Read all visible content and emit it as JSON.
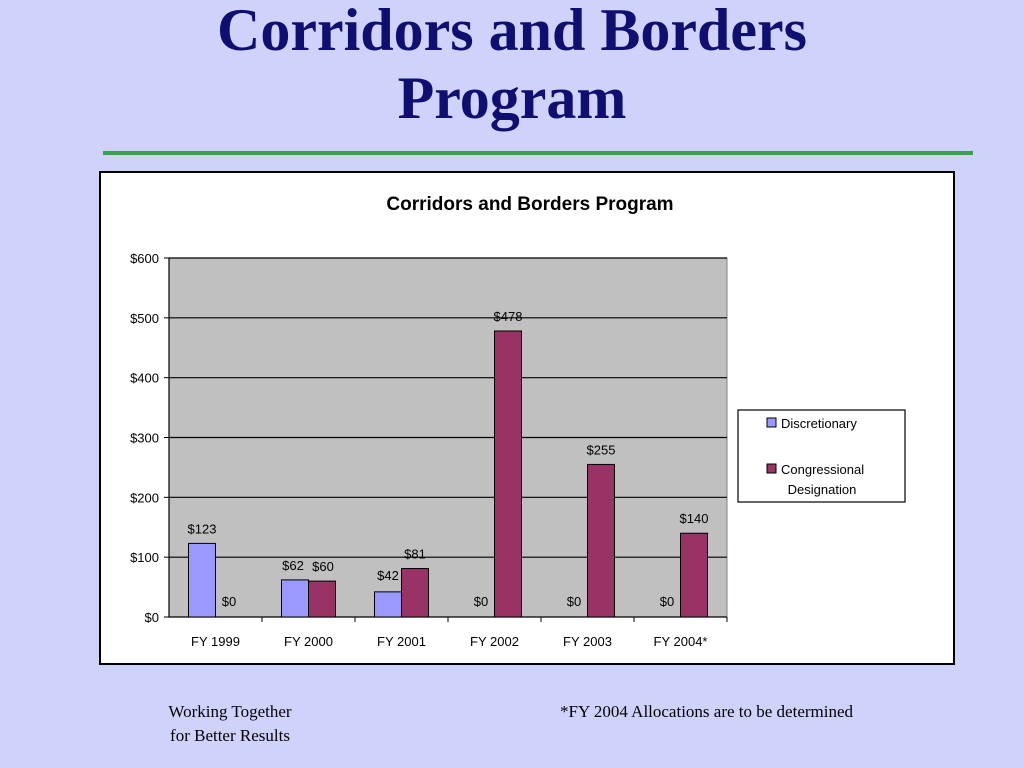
{
  "slide": {
    "title_line1": "Corridors and Borders",
    "title_line2": "Program",
    "footer_left_line1": "Working Together",
    "footer_left_line2": "for Better Results",
    "footer_right": "*FY 2004 Allocations are to be determined"
  },
  "colors": {
    "background": "#cfd3fb",
    "title": "#0f0f72",
    "rule": "#36a34a",
    "plot_area": "#c0c0c0",
    "discretionary": "#9999ff",
    "congressional": "#993366"
  },
  "chart_data": {
    "type": "bar",
    "title": "Corridors and Borders Program",
    "categories": [
      "FY 1999",
      "FY 2000",
      "FY 2001",
      "FY 2002",
      "FY 2003",
      "FY 2004*"
    ],
    "series": [
      {
        "name": "Discretionary",
        "values": [
          123,
          62,
          42,
          0,
          0,
          0
        ],
        "labels": [
          "$123",
          "$62",
          "$42",
          "",
          "",
          ""
        ]
      },
      {
        "name": "Congressional Designation",
        "values": [
          0,
          60,
          81,
          478,
          255,
          140
        ],
        "labels": [
          "$0",
          "$60",
          "$81",
          "$478",
          "$255",
          "$140"
        ]
      }
    ],
    "zero_labels_discretionary": [
      "",
      "",
      "",
      "$0",
      "$0",
      "$0"
    ],
    "yticks": [
      "$0",
      "$100",
      "$200",
      "$300",
      "$400",
      "$500",
      "$600"
    ],
    "ylim": [
      0,
      600
    ],
    "grid": true,
    "legend_position": "right"
  }
}
